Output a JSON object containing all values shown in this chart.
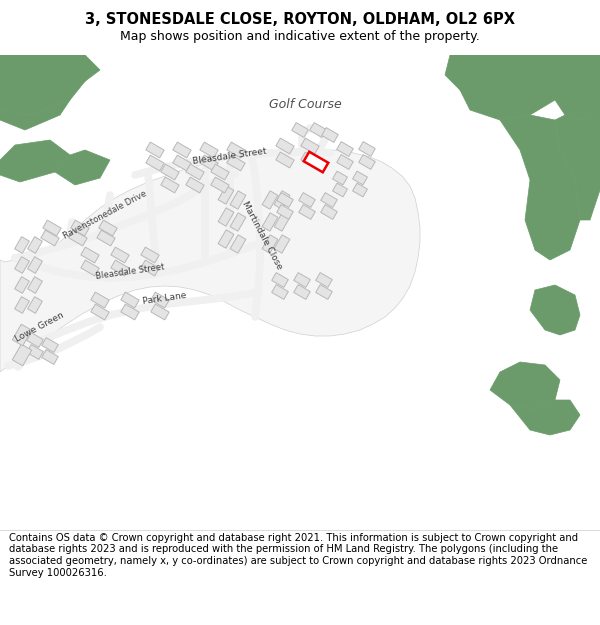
{
  "title": "3, STONESDALE CLOSE, ROYTON, OLDHAM, OL2 6PX",
  "subtitle": "Map shows position and indicative extent of the property.",
  "footer": "Contains OS data © Crown copyright and database right 2021. This information is subject to Crown copyright and database rights 2023 and is reproduced with the permission of HM Land Registry. The polygons (including the associated geometry, namely x, y co-ordinates) are subject to Crown copyright and database rights 2023 Ordnance Survey 100026316.",
  "bg_light_green": "#c8dcc8",
  "bg_dark_green": "#6b9b6b",
  "road_fill": "#f0f0f0",
  "road_stroke": "#d8d8d8",
  "building_fill": "#e4e4e4",
  "building_stroke": "#b8b8b8",
  "highlight_fill": "#ffffff",
  "highlight_stroke": "#ee0000",
  "title_fontsize": 10.5,
  "subtitle_fontsize": 9,
  "footer_fontsize": 7.2,
  "golf_label_fontsize": 9,
  "street_fontsize": 6.5
}
